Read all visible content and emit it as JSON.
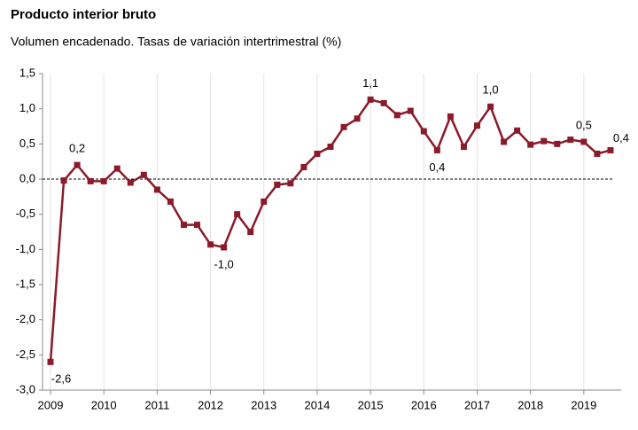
{
  "chart_data": {
    "type": "line",
    "title": "Producto interior bruto",
    "subtitle": "Volumen encadenado. Tasas de variación intertrimestral (%)",
    "color": "#8b1a2b",
    "x": [
      2009,
      2009.25,
      2009.5,
      2009.75,
      2010,
      2010.25,
      2010.5,
      2010.75,
      2011,
      2011.25,
      2011.5,
      2011.75,
      2012,
      2012.25,
      2012.5,
      2012.75,
      2013,
      2013.25,
      2013.5,
      2013.75,
      2014,
      2014.25,
      2014.5,
      2014.75,
      2015,
      2015.25,
      2015.5,
      2015.75,
      2016,
      2016.25,
      2016.5,
      2016.75,
      2017,
      2017.25,
      2017.5,
      2017.75,
      2018,
      2018.25,
      2018.5,
      2018.75,
      2019,
      2019.25,
      2019.5
    ],
    "values": [
      -2.6,
      -0.02,
      0.2,
      -0.03,
      -0.03,
      0.15,
      -0.05,
      0.06,
      -0.15,
      -0.32,
      -0.65,
      -0.65,
      -0.93,
      -0.97,
      -0.5,
      -0.75,
      -0.32,
      -0.08,
      -0.06,
      0.17,
      0.36,
      0.46,
      0.74,
      0.86,
      1.13,
      1.08,
      0.91,
      0.97,
      0.68,
      0.41,
      0.89,
      0.46,
      0.76,
      1.03,
      0.53,
      0.69,
      0.49,
      0.54,
      0.5,
      0.56,
      0.53,
      0.36,
      0.41
    ],
    "value_labels": [
      "-2,6",
      null,
      "0,2",
      null,
      null,
      null,
      null,
      null,
      null,
      null,
      null,
      null,
      null,
      "-1,0",
      null,
      null,
      null,
      null,
      null,
      null,
      null,
      null,
      null,
      null,
      "1,1",
      null,
      null,
      null,
      null,
      "0,4",
      null,
      null,
      null,
      "1,0",
      null,
      null,
      null,
      null,
      null,
      null,
      "0,5",
      null,
      "0,4"
    ],
    "xlim": [
      2009,
      2019.7
    ],
    "xticks": [
      2009,
      2010,
      2011,
      2012,
      2013,
      2014,
      2015,
      2016,
      2017,
      2018,
      2019
    ],
    "ylim": [
      -3.0,
      1.5
    ],
    "yticks": [
      {
        "value": -3.0,
        "label": "-3,0"
      },
      {
        "value": -2.5,
        "label": "-2,5"
      },
      {
        "value": -2.0,
        "label": "-2,0"
      },
      {
        "value": -1.5,
        "label": "-1,5"
      },
      {
        "value": -1.0,
        "label": "-1,0"
      },
      {
        "value": -0.5,
        "label": "-0,5"
      },
      {
        "value": 0.0,
        "label": "0,0"
      },
      {
        "value": 0.5,
        "label": "0,5"
      },
      {
        "value": 1.0,
        "label": "1,0"
      },
      {
        "value": 1.5,
        "label": "1,5"
      }
    ],
    "grid": true
  }
}
